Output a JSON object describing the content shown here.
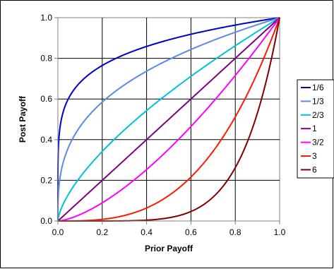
{
  "chart_data": {
    "type": "line",
    "title": "",
    "xlabel": "Prior Payoff",
    "ylabel": "Post Payoff",
    "xlim": [
      0,
      1
    ],
    "ylim": [
      0,
      1
    ],
    "x_ticks": [
      "0.0",
      "0.2",
      "0.4",
      "0.6",
      "0.8",
      "1.0"
    ],
    "y_ticks": [
      "0.0",
      "0.2",
      "0.4",
      "0.6",
      "0.8",
      "1.0"
    ],
    "grid": true,
    "legend_position": "right",
    "series": [
      {
        "name": "1/6",
        "exponent": 0.16667,
        "color": "#0000cc"
      },
      {
        "name": "1/3",
        "exponent": 0.33333,
        "color": "#5b8ae6"
      },
      {
        "name": "2/3",
        "exponent": 0.66667,
        "color": "#00bfe0"
      },
      {
        "name": "1",
        "exponent": 1,
        "color": "#800080"
      },
      {
        "name": "3/2",
        "exponent": 1.5,
        "color": "#ff00ff"
      },
      {
        "name": "3",
        "exponent": 3,
        "color": "#ff1a00"
      },
      {
        "name": "6",
        "exponent": 6,
        "color": "#800000"
      }
    ]
  }
}
